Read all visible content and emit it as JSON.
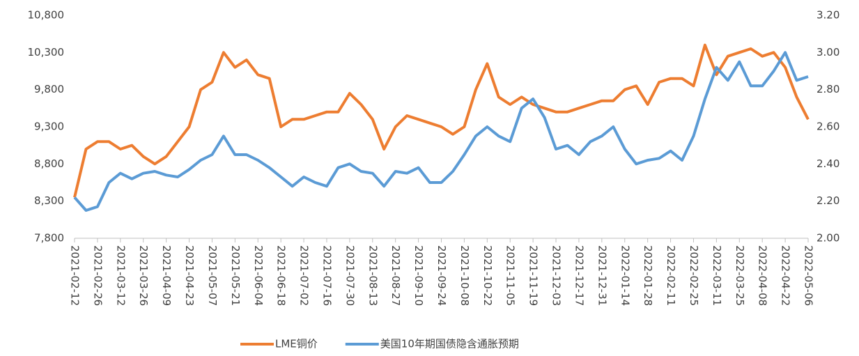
{
  "chart_data": {
    "type": "line",
    "x": [
      "2021-02-12",
      "2021-02-19",
      "2021-02-26",
      "2021-03-05",
      "2021-03-12",
      "2021-03-19",
      "2021-03-26",
      "2021-04-02",
      "2021-04-09",
      "2021-04-16",
      "2021-04-23",
      "2021-04-30",
      "2021-05-07",
      "2021-05-14",
      "2021-05-21",
      "2021-05-28",
      "2021-06-04",
      "2021-06-11",
      "2021-06-18",
      "2021-06-25",
      "2021-07-02",
      "2021-07-09",
      "2021-07-16",
      "2021-07-23",
      "2021-07-30",
      "2021-08-06",
      "2021-08-13",
      "2021-08-20",
      "2021-08-27",
      "2021-09-03",
      "2021-09-10",
      "2021-09-17",
      "2021-09-24",
      "2021-10-01",
      "2021-10-08",
      "2021-10-15",
      "2021-10-22",
      "2021-10-29",
      "2021-11-05",
      "2021-11-12",
      "2021-11-19",
      "2021-11-26",
      "2021-12-03",
      "2021-12-10",
      "2021-12-17",
      "2021-12-24",
      "2021-12-31",
      "2022-01-07",
      "2022-01-14",
      "2022-01-21",
      "2022-01-28",
      "2022-02-04",
      "2022-02-11",
      "2022-02-18",
      "2022-02-25",
      "2022-03-04",
      "2022-03-11",
      "2022-03-18",
      "2022-03-25",
      "2022-04-01",
      "2022-04-08",
      "2022-04-15",
      "2022-04-22",
      "2022-04-29",
      "2022-05-06"
    ],
    "series": [
      {
        "name": "LME铜价",
        "color": "#ED7D31",
        "values": [
          8350,
          9000,
          9100,
          9100,
          9000,
          9050,
          8900,
          8800,
          8900,
          9100,
          9300,
          9800,
          9900,
          10300,
          10100,
          10200,
          10000,
          9950,
          9300,
          9400,
          9400,
          9450,
          9500,
          9500,
          9750,
          9600,
          9400,
          9000,
          9300,
          9450,
          9400,
          9350,
          9300,
          9200,
          9300,
          9800,
          10150,
          9700,
          9600,
          9700,
          9600,
          9550,
          9500,
          9500,
          9550,
          9600,
          9650,
          9650,
          9800,
          9850,
          9600,
          9900,
          9950,
          9950,
          9850,
          10400,
          10000,
          10250,
          10300,
          10350,
          10250,
          10300,
          10100,
          9700,
          9400
        ]
      },
      {
        "name": "美国10年期国债隐含通胀预期",
        "color": "#5B9BD5",
        "axis": "y2",
        "values": [
          2.22,
          2.15,
          2.17,
          2.3,
          2.35,
          2.32,
          2.35,
          2.36,
          2.34,
          2.33,
          2.37,
          2.42,
          2.45,
          2.55,
          2.45,
          2.45,
          2.42,
          2.38,
          2.33,
          2.28,
          2.33,
          2.3,
          2.28,
          2.38,
          2.4,
          2.36,
          2.35,
          2.28,
          2.36,
          2.35,
          2.38,
          2.3,
          2.3,
          2.36,
          2.45,
          2.55,
          2.6,
          2.55,
          2.52,
          2.7,
          2.75,
          2.65,
          2.48,
          2.5,
          2.45,
          2.52,
          2.55,
          2.6,
          2.48,
          2.4,
          2.42,
          2.43,
          2.47,
          2.42,
          2.55,
          2.75,
          2.92,
          2.85,
          2.95,
          2.82,
          2.82,
          2.9,
          3.0,
          2.85,
          2.87
        ]
      }
    ],
    "ylim": [
      7800,
      10800
    ],
    "yticks": [
      {
        "value": 7800,
        "label": "7,800"
      },
      {
        "value": 8300,
        "label": "8,300"
      },
      {
        "value": 8800,
        "label": "8,800"
      },
      {
        "value": 9300,
        "label": "9,300"
      },
      {
        "value": 9800,
        "label": "9,800"
      },
      {
        "value": 10300,
        "label": "10,300"
      },
      {
        "value": 10800,
        "label": "10,800"
      }
    ],
    "y2lim": [
      2.0,
      3.2
    ],
    "y2ticks": [
      {
        "value": 2.0,
        "label": "2.00"
      },
      {
        "value": 2.2,
        "label": "2.20"
      },
      {
        "value": 2.4,
        "label": "2.40"
      },
      {
        "value": 2.6,
        "label": "2.60"
      },
      {
        "value": 2.8,
        "label": "2.80"
      },
      {
        "value": 3.0,
        "label": "3.00"
      },
      {
        "value": 3.2,
        "label": "3.20"
      }
    ],
    "xticks": [
      "2021-02-12",
      "2021-02-26",
      "2021-03-12",
      "2021-03-26",
      "2021-04-09",
      "2021-04-23",
      "2021-05-07",
      "2021-05-21",
      "2021-06-04",
      "2021-06-18",
      "2021-07-02",
      "2021-07-16",
      "2021-07-30",
      "2021-08-13",
      "2021-08-27",
      "2021-09-10",
      "2021-09-24",
      "2021-10-08",
      "2021-10-22",
      "2021-11-05",
      "2021-11-19",
      "2021-12-03",
      "2021-12-17",
      "2021-12-31",
      "2022-01-14",
      "2022-01-28",
      "2022-02-11",
      "2022-02-25",
      "2022-03-11",
      "2022-03-25",
      "2022-04-08",
      "2022-04-22",
      "2022-05-06"
    ],
    "legend": "bottom"
  }
}
